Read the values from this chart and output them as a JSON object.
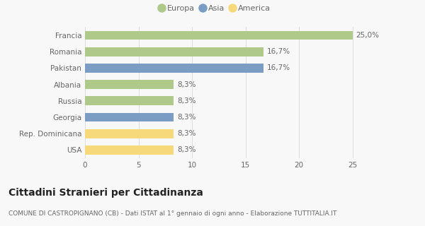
{
  "categories": [
    "Francia",
    "Romania",
    "Pakistan",
    "Albania",
    "Russia",
    "Georgia",
    "Rep. Dominicana",
    "USA"
  ],
  "values": [
    25.0,
    16.7,
    16.7,
    8.3,
    8.3,
    8.3,
    8.3,
    8.3
  ],
  "labels": [
    "25,0%",
    "16,7%",
    "16,7%",
    "8,3%",
    "8,3%",
    "8,3%",
    "8,3%",
    "8,3%"
  ],
  "colors": [
    "#aec98a",
    "#aec98a",
    "#7b9dc4",
    "#aec98a",
    "#aec98a",
    "#7b9dc4",
    "#f5d97a",
    "#f5d97a"
  ],
  "legend": [
    {
      "label": "Europa",
      "color": "#aec98a"
    },
    {
      "label": "Asia",
      "color": "#7b9dc4"
    },
    {
      "label": "America",
      "color": "#f5d97a"
    }
  ],
  "xlim": [
    0,
    27
  ],
  "xticks": [
    0,
    5,
    10,
    15,
    20,
    25
  ],
  "title": "Cittadini Stranieri per Cittadinanza",
  "subtitle": "COMUNE DI CASTROPIGNANO (CB) - Dati ISTAT al 1° gennaio di ogni anno - Elaborazione TUTTITALIA.IT",
  "bg_color": "#f8f8f8",
  "grid_color": "#dddddd",
  "bar_height": 0.55,
  "label_fontsize": 7.5,
  "tick_fontsize": 7.5,
  "title_fontsize": 10,
  "subtitle_fontsize": 6.5
}
